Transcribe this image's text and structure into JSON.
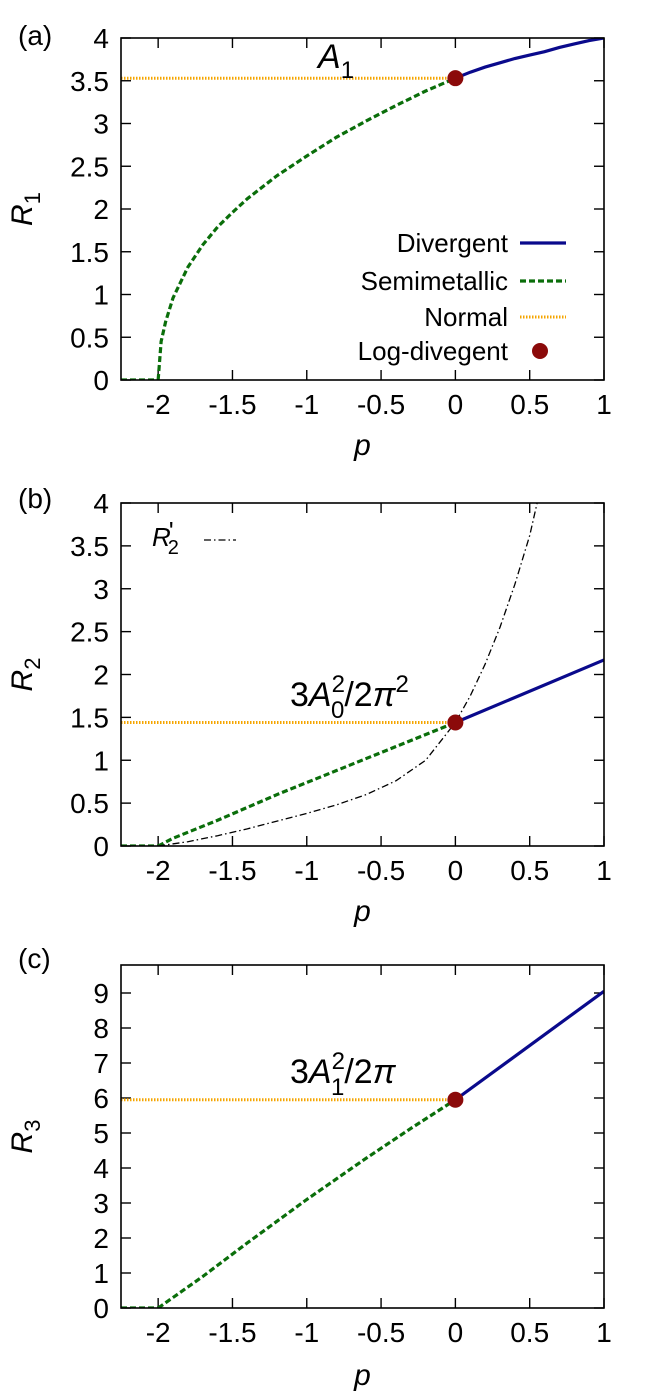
{
  "colors": {
    "divergent": "#0a0a8c",
    "semimetallic": "#0a6e0a",
    "normal": "#f5a500",
    "logdivergent": "#8b0a0a",
    "rprime": "#000000"
  },
  "chart_data": [
    {
      "type": "line",
      "panel_label": "(a)",
      "xlabel": "p",
      "ylabel_base": "R",
      "ylabel_sub": "1",
      "xlim": [
        -2.25,
        1
      ],
      "ylim": [
        0,
        4
      ],
      "x_ticks": [
        -2,
        -1.5,
        -1,
        -0.5,
        0,
        0.5,
        1
      ],
      "x_tick_labels": [
        "-2",
        "-1.5",
        "-1",
        "-0.5",
        "0",
        "0.5",
        "1"
      ],
      "y_ticks": [
        0,
        0.5,
        1,
        1.5,
        2,
        2.5,
        3,
        3.5,
        4
      ],
      "y_tick_labels": [
        "0",
        "0.5",
        "1",
        "1.5",
        "2",
        "2.5",
        "3",
        "3.5",
        "4"
      ],
      "annotation": {
        "base": "A",
        "sub": "1",
        "sup": "",
        "rest": ""
      },
      "legend": {
        "placement": "bottom-right",
        "entries": [
          "Divergent",
          "Semimetallic",
          "Normal",
          "Log-divegent"
        ]
      },
      "series": [
        {
          "name": "Divergent",
          "style": "solid",
          "x": [
            0,
            0.1,
            0.2,
            0.3,
            0.4,
            0.5,
            0.6,
            0.7,
            0.8,
            0.9,
            1.0
          ],
          "y": [
            3.53,
            3.6,
            3.66,
            3.71,
            3.76,
            3.8,
            3.84,
            3.89,
            3.93,
            3.97,
            4.0
          ]
        },
        {
          "name": "Semimetallic",
          "style": "dashed",
          "x": [
            -2.0,
            -1.98,
            -1.95,
            -1.9,
            -1.8,
            -1.7,
            -1.6,
            -1.5,
            -1.4,
            -1.2,
            -1.0,
            -0.8,
            -0.6,
            -0.4,
            -0.2,
            0.0
          ],
          "y": [
            0.0,
            0.45,
            0.68,
            0.96,
            1.32,
            1.58,
            1.79,
            1.96,
            2.12,
            2.39,
            2.62,
            2.84,
            3.03,
            3.21,
            3.38,
            3.53
          ]
        },
        {
          "name": "Normal",
          "style": "dotted",
          "x": [
            -2.25,
            0
          ],
          "y": [
            3.53,
            3.53
          ]
        },
        {
          "name": "",
          "style": "dashed",
          "x": [
            -2.25,
            -2.0
          ],
          "y": [
            0,
            0
          ]
        },
        {
          "name": "Log-divegent",
          "style": "point",
          "x": [
            0
          ],
          "y": [
            3.53
          ]
        }
      ]
    },
    {
      "type": "line",
      "panel_label": "(b)",
      "xlabel": "p",
      "ylabel_base": "R",
      "ylabel_sub": "2",
      "xlim": [
        -2.25,
        1
      ],
      "ylim": [
        0,
        4
      ],
      "x_ticks": [
        -2,
        -1.5,
        -1,
        -0.5,
        0,
        0.5,
        1
      ],
      "x_tick_labels": [
        "-2",
        "-1.5",
        "-1",
        "-0.5",
        "0",
        "0.5",
        "1"
      ],
      "y_ticks": [
        0,
        0.5,
        1,
        1.5,
        2,
        2.5,
        3,
        3.5,
        4
      ],
      "y_tick_labels": [
        "0",
        "0.5",
        "1",
        "1.5",
        "2",
        "2.5",
        "3",
        "3.5",
        "4"
      ],
      "annotation": {
        "base": "3A",
        "sub": "0",
        "sup": "2",
        "rest": "/2π",
        "rest_sup": "2"
      },
      "legend": {
        "placement": "top-left",
        "entries": [
          "R'2"
        ]
      },
      "series": [
        {
          "name": "Divergent",
          "style": "solid",
          "x": [
            0,
            1
          ],
          "y": [
            1.44,
            2.17
          ]
        },
        {
          "name": "Semimetallic",
          "style": "dashed",
          "x": [
            -2.0,
            -1.9,
            -1.6,
            -1.2,
            -0.8,
            -0.4,
            0.0
          ],
          "y": [
            0.0,
            0.09,
            0.3,
            0.6,
            0.88,
            1.16,
            1.44
          ]
        },
        {
          "name": "Normal",
          "style": "dotted",
          "x": [
            -2.25,
            0
          ],
          "y": [
            1.44,
            1.44
          ]
        },
        {
          "name": "",
          "style": "dashed",
          "x": [
            -2.25,
            -2.0
          ],
          "y": [
            0,
            0
          ]
        },
        {
          "name": "R'2",
          "style": "dashdot",
          "x": [
            -2.0,
            -1.8,
            -1.6,
            -1.4,
            -1.2,
            -1.0,
            -0.8,
            -0.6,
            -0.4,
            -0.2,
            0.0,
            0.1,
            0.2,
            0.3,
            0.4,
            0.5,
            0.55
          ],
          "y": [
            0.0,
            0.05,
            0.12,
            0.2,
            0.29,
            0.38,
            0.48,
            0.6,
            0.76,
            1.0,
            1.44,
            1.75,
            2.12,
            2.55,
            3.05,
            3.62,
            4.0
          ]
        },
        {
          "name": "Log-divegent",
          "style": "point",
          "x": [
            0
          ],
          "y": [
            1.44
          ]
        }
      ]
    },
    {
      "type": "line",
      "panel_label": "(c)",
      "xlabel": "p",
      "ylabel_base": "R",
      "ylabel_sub": "3",
      "xlim": [
        -2.25,
        1
      ],
      "ylim": [
        0,
        9.8
      ],
      "x_ticks": [
        -2,
        -1.5,
        -1,
        -0.5,
        0,
        0.5,
        1
      ],
      "x_tick_labels": [
        "-2",
        "-1.5",
        "-1",
        "-0.5",
        "0",
        "0.5",
        "1"
      ],
      "y_ticks": [
        0,
        1,
        2,
        3,
        4,
        5,
        6,
        7,
        8,
        9
      ],
      "y_tick_labels": [
        "0",
        "1",
        "2",
        "3",
        "4",
        "5",
        "6",
        "7",
        "8",
        "9"
      ],
      "annotation": {
        "base": "3A",
        "sub": "1",
        "sup": "2",
        "rest": "/2π",
        "rest_sup": ""
      },
      "legend": null,
      "series": [
        {
          "name": "Divergent",
          "style": "solid",
          "x": [
            0,
            1
          ],
          "y": [
            5.95,
            9.05
          ]
        },
        {
          "name": "Semimetallic",
          "style": "dashed",
          "x": [
            -2.0,
            -1.9,
            -1.7,
            -1.4,
            -1.0,
            -0.6,
            -0.3,
            0.0
          ],
          "y": [
            0.0,
            0.3,
            0.9,
            1.86,
            3.1,
            4.28,
            5.13,
            5.95
          ]
        },
        {
          "name": "Normal",
          "style": "dotted",
          "x": [
            -2.25,
            0
          ],
          "y": [
            5.95,
            5.95
          ]
        },
        {
          "name": "",
          "style": "dashed",
          "x": [
            -2.25,
            -2.0
          ],
          "y": [
            0,
            0
          ]
        },
        {
          "name": "Log-divegent",
          "style": "point",
          "x": [
            0
          ],
          "y": [
            5.95
          ]
        }
      ]
    }
  ]
}
